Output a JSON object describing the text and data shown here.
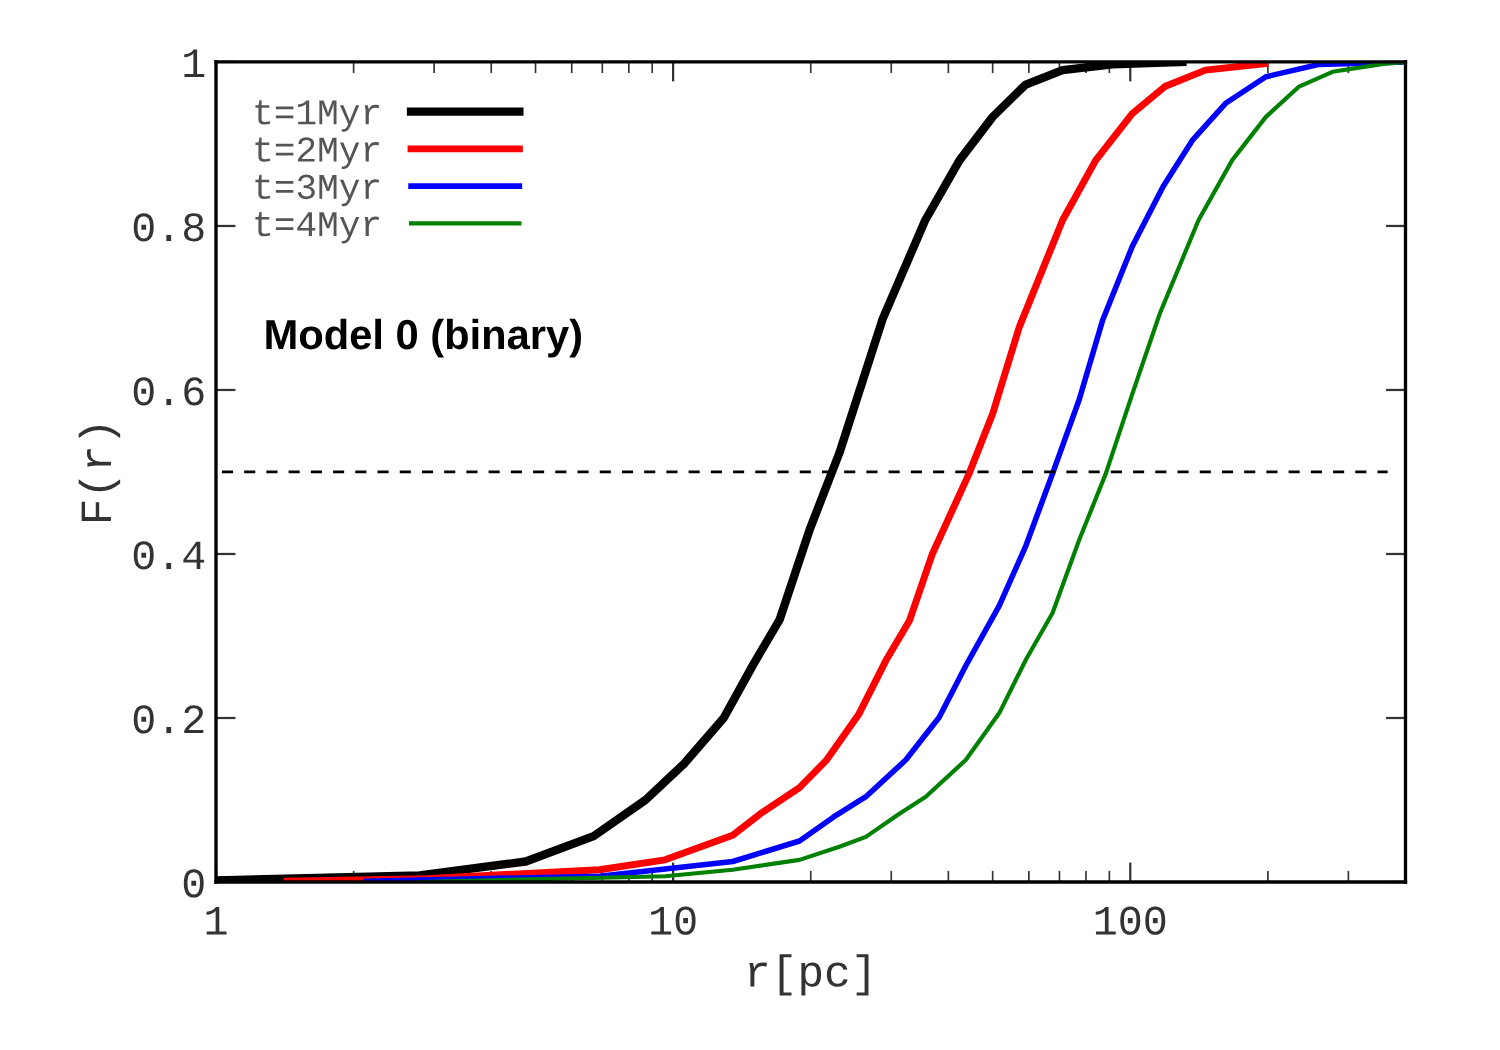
{
  "chart_data": {
    "type": "line",
    "xlabel": "r[pc]",
    "ylabel": "F(r)",
    "log": "x",
    "xlim": [
      1,
      400
    ],
    "xticks": [
      1,
      10,
      100
    ],
    "ylim": [
      0,
      1
    ],
    "yticks": [
      0,
      0.2,
      0.4,
      0.6,
      0.8,
      1
    ],
    "grid": false,
    "legend": "top left",
    "marker": "none",
    "line_style": "solid",
    "annotations": [
      "Model 0 (binary)"
    ],
    "ref_lines": [
      {
        "axis": "y",
        "value": 0.5,
        "color": "#000000",
        "line_style": "dashed"
      }
    ],
    "series": [
      {
        "name": "t=1Myr",
        "color": "#000000",
        "x": [
          1,
          2.79,
          4.76,
          6.7,
          8.7,
          10.6,
          12.9,
          15.0,
          17.1,
          19.9,
          23.1,
          28.7,
          35.6,
          42.3,
          50.0,
          58.9,
          71.1,
          91.4,
          130
        ],
        "values": [
          0.002,
          0.008,
          0.025,
          0.056,
          0.1,
          0.145,
          0.2,
          0.266,
          0.32,
          0.43,
          0.523,
          0.686,
          0.807,
          0.88,
          0.933,
          0.972,
          0.99,
          0.997,
          1.0
        ]
      },
      {
        "name": "t=2Myr",
        "color": "#ff0000",
        "x": [
          1.43,
          2.88,
          6.9,
          9.6,
          13.5,
          15.5,
          18.9,
          21.6,
          25.5,
          29.2,
          32.9,
          36.9,
          44.4,
          50.0,
          57.2,
          71.1,
          84.0,
          101,
          119,
          146,
          197
        ],
        "values": [
          0.001,
          0.004,
          0.015,
          0.027,
          0.057,
          0.083,
          0.115,
          0.148,
          0.205,
          0.27,
          0.319,
          0.4,
          0.498,
          0.571,
          0.677,
          0.807,
          0.88,
          0.937,
          0.97,
          0.99,
          0.998
        ]
      },
      {
        "name": "t=3Myr",
        "color": "#0000ff",
        "x": [
          2.13,
          6.9,
          13.5,
          18.9,
          22.4,
          26.4,
          32.3,
          38.2,
          43.7,
          51.7,
          59.1,
          67.6,
          77.3,
          87.0,
          101,
          118,
          137,
          162,
          198,
          259,
          398
        ],
        "values": [
          0.001,
          0.007,
          0.025,
          0.05,
          0.079,
          0.104,
          0.149,
          0.201,
          0.264,
          0.337,
          0.41,
          0.498,
          0.588,
          0.685,
          0.775,
          0.848,
          0.905,
          0.95,
          0.982,
          0.997,
          1.0
        ]
      },
      {
        "name": "t=4Myr",
        "color": "#008000",
        "x": [
          2.79,
          9.6,
          13.5,
          18.9,
          23.1,
          26.4,
          31.2,
          35.7,
          43.7,
          51.7,
          59.1,
          67.6,
          77.3,
          88.4,
          101,
          116,
          141,
          167,
          198,
          234,
          277,
          361,
          398
        ],
        "values": [
          0.0,
          0.007,
          0.015,
          0.027,
          0.043,
          0.055,
          0.083,
          0.104,
          0.149,
          0.206,
          0.271,
          0.328,
          0.417,
          0.498,
          0.595,
          0.693,
          0.807,
          0.88,
          0.933,
          0.97,
          0.988,
          0.998,
          1.0
        ]
      }
    ]
  }
}
